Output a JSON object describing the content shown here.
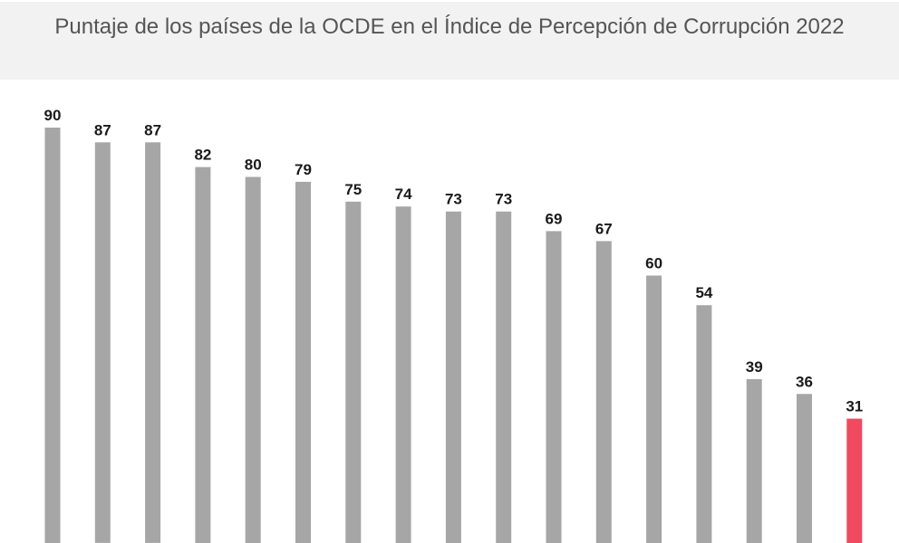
{
  "chart_data": {
    "type": "bar",
    "title": "Puntaje de los países de la OCDE en el Índice de Percepción de Corrupción 2022",
    "values": [
      90,
      87,
      87,
      82,
      80,
      79,
      75,
      74,
      73,
      73,
      69,
      67,
      60,
      54,
      39,
      36,
      31
    ],
    "highlight_index": 16,
    "colors": {
      "bar": "#a6a6a6",
      "highlight": "#ef4a60",
      "title_band": "#f2f2f2",
      "title_text": "#555555",
      "value_text": "#1a1a1a"
    },
    "grid": false,
    "legend": "none"
  }
}
